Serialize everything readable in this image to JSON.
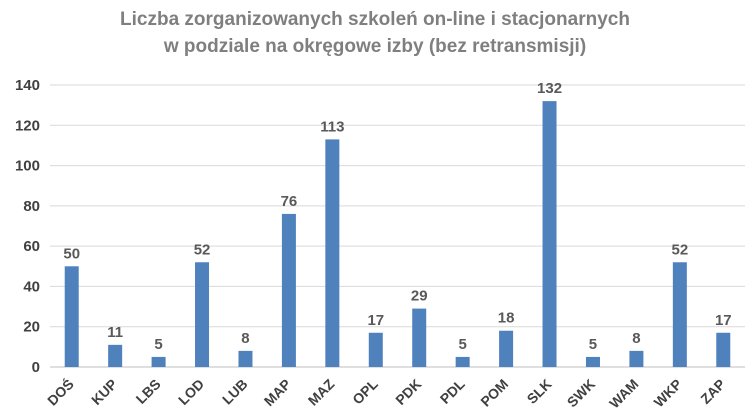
{
  "chart_data": {
    "type": "bar",
    "title_line1": "Liczba zorganizowanych szkoleń on-line i stacjonarnych",
    "title_line2": "w podziale na okręgowe izby  (bez retransmisji)",
    "categories": [
      "DOŚ",
      "KUP",
      "LBS",
      "LOD",
      "LUB",
      "MAP",
      "MAZ",
      "OPL",
      "PDK",
      "PDL",
      "POM",
      "SLK",
      "SWK",
      "WAM",
      "WKP",
      "ZAP"
    ],
    "values": [
      50,
      11,
      5,
      52,
      8,
      76,
      113,
      17,
      29,
      5,
      18,
      132,
      5,
      8,
      52,
      17
    ],
    "ylim": [
      0,
      140
    ],
    "yticks": [
      0,
      20,
      40,
      60,
      80,
      100,
      120,
      140
    ],
    "grid": true,
    "legend": "none",
    "bar_color": "#4f81bd",
    "grid_color": "#d9d9d9"
  }
}
